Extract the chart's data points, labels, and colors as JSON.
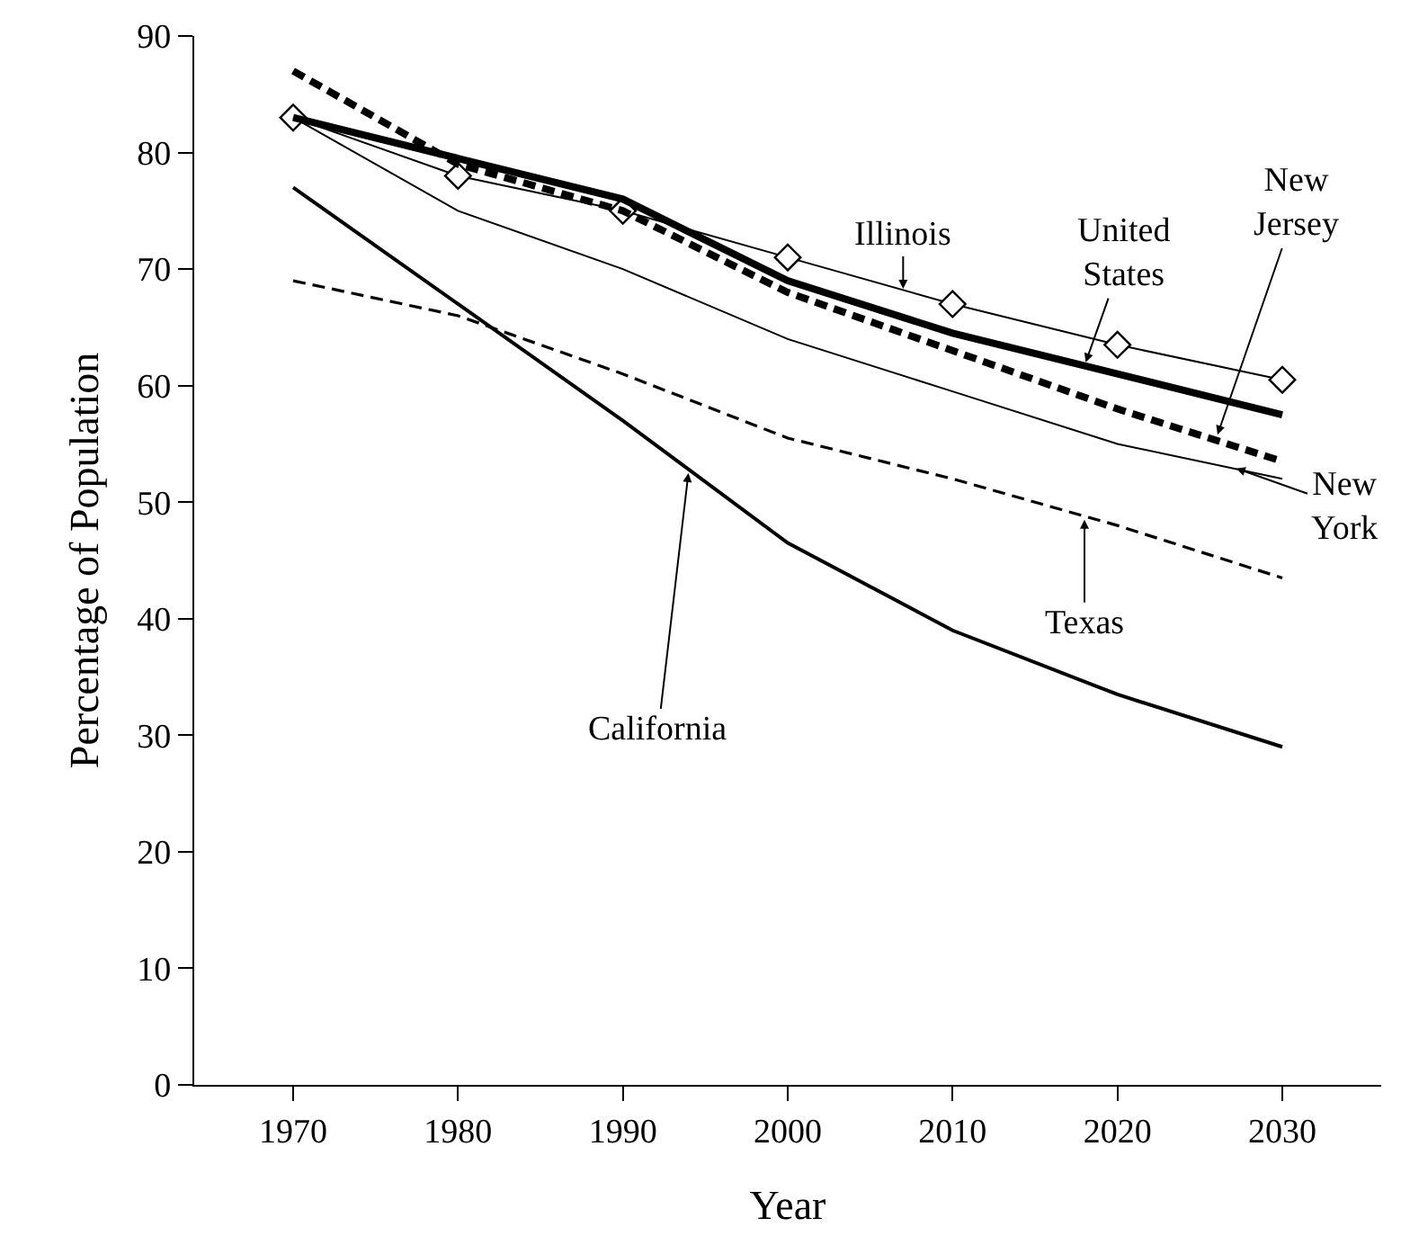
{
  "chart_data": {
    "type": "line",
    "xlabel": "Year",
    "ylabel": "Percentage of Population",
    "x": [
      1970,
      1980,
      1990,
      2000,
      2010,
      2020,
      2030
    ],
    "xlim": [
      1964,
      2036
    ],
    "xticks": [
      1970,
      1980,
      1990,
      2000,
      2010,
      2020,
      2030
    ],
    "ylim": [
      0,
      90
    ],
    "yticks": [
      0,
      10,
      20,
      30,
      40,
      50,
      60,
      70,
      80,
      90
    ],
    "grid": false,
    "annotations": [
      {
        "text": "Illinois",
        "x": 2007,
        "y": 68
      },
      {
        "text": "United States",
        "x": 2018,
        "y": 61.7
      },
      {
        "text": "New Jersey",
        "x": 2026,
        "y": 55.5
      },
      {
        "text": "New York",
        "x": 2027,
        "y": 53
      },
      {
        "text": "Texas",
        "x": 2018,
        "y": 48.8
      },
      {
        "text": "California",
        "x": 1994,
        "y": 52.8
      }
    ],
    "series": [
      {
        "color": "#000000",
        "marker": "diamond",
        "line_style": "solid",
        "values": [
          83,
          78,
          75,
          71,
          67,
          63.5,
          60.5
        ]
      },
      {
        "color": "#000000",
        "marker": "none",
        "line_style": "solid",
        "values": [
          83,
          79.5,
          76,
          69,
          64.5,
          61,
          57.5
        ]
      },
      {
        "color": "#000000",
        "marker": "none",
        "line_style": "dashed",
        "values": [
          87,
          79,
          75,
          68,
          63,
          58,
          53.5
        ]
      },
      {
        "color": "#000000",
        "marker": "none",
        "line_style": "solid",
        "values": [
          83,
          75,
          70,
          64,
          59.5,
          55,
          52
        ]
      },
      {
        "color": "#000000",
        "marker": "none",
        "line_style": "dashed",
        "values": [
          69,
          66,
          61,
          55.5,
          52,
          48,
          43.5
        ]
      },
      {
        "color": "#000000",
        "marker": "none",
        "line_style": "solid",
        "values": [
          77,
          67,
          57,
          46.5,
          39,
          33.5,
          29
        ]
      }
    ]
  }
}
